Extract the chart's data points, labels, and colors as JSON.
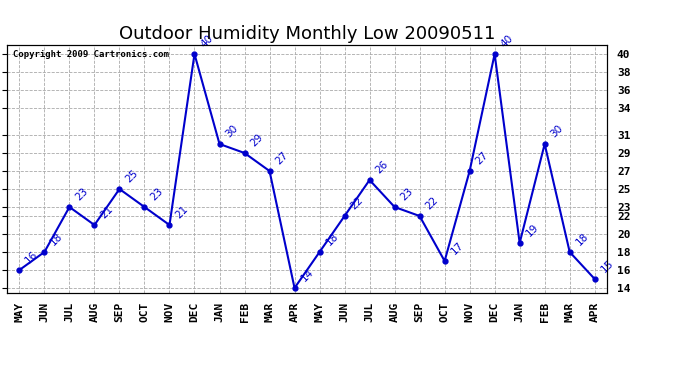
{
  "title": "Outdoor Humidity Monthly Low 20090511",
  "copyright": "Copyright 2009 Cartronics.com",
  "x_labels": [
    "MAY",
    "JUN",
    "JUL",
    "AUG",
    "SEP",
    "OCT",
    "NOV",
    "DEC",
    "JAN",
    "FEB",
    "MAR",
    "APR",
    "MAY",
    "JUN",
    "JUL",
    "AUG",
    "SEP",
    "OCT",
    "NOV",
    "DEC",
    "JAN",
    "FEB",
    "MAR",
    "APR"
  ],
  "y_values": [
    16,
    18,
    23,
    21,
    25,
    23,
    21,
    40,
    30,
    29,
    27,
    14,
    18,
    22,
    26,
    23,
    22,
    17,
    27,
    40,
    19,
    30,
    18,
    15
  ],
  "ylim": [
    13.5,
    41
  ],
  "yticks": [
    14,
    16,
    18,
    20,
    22,
    23,
    25,
    27,
    29,
    31,
    34,
    36,
    38,
    40
  ],
  "line_color": "#0000cc",
  "marker_color": "#0000cc",
  "bg_color": "#ffffff",
  "grid_color": "#aaaaaa",
  "title_fontsize": 13,
  "label_fontsize": 8,
  "annot_fontsize": 7.5
}
